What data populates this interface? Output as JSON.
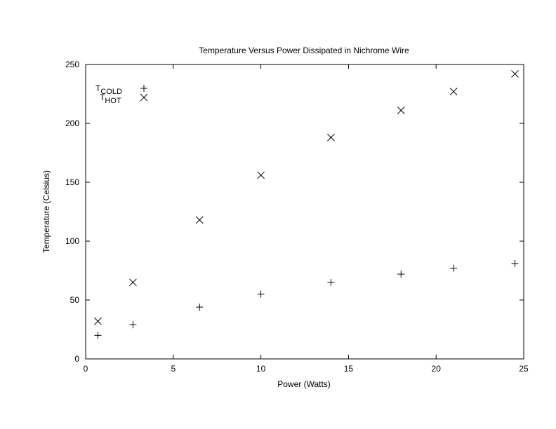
{
  "chart_data": {
    "type": "scatter",
    "title": "Temperature Versus Power Dissipated in Nichrome Wire",
    "xlabel": "Power (Watts)",
    "ylabel": "Temperature (Celsius)",
    "xlim": [
      0,
      25
    ],
    "ylim": [
      0,
      250
    ],
    "xticks": [
      0,
      5,
      10,
      15,
      20,
      25
    ],
    "yticks": [
      0,
      50,
      100,
      150,
      200,
      250
    ],
    "grid": false,
    "legend_position": "top-left",
    "series": [
      {
        "name": "T",
        "name_subscript": "COLD",
        "marker": "plus",
        "color": "#000000",
        "x": [
          0.7,
          2.7,
          6.5,
          10.0,
          14.0,
          18.0,
          21.0,
          24.5
        ],
        "y": [
          20,
          29,
          44,
          55,
          65,
          72,
          77,
          81
        ]
      },
      {
        "name": "T",
        "name_subscript": "HOT",
        "marker": "cross",
        "color": "#000000",
        "x": [
          0.7,
          2.7,
          6.5,
          10.0,
          14.0,
          18.0,
          21.0,
          24.5
        ],
        "y": [
          32,
          65,
          118,
          156,
          188,
          211,
          227,
          242
        ]
      }
    ]
  }
}
